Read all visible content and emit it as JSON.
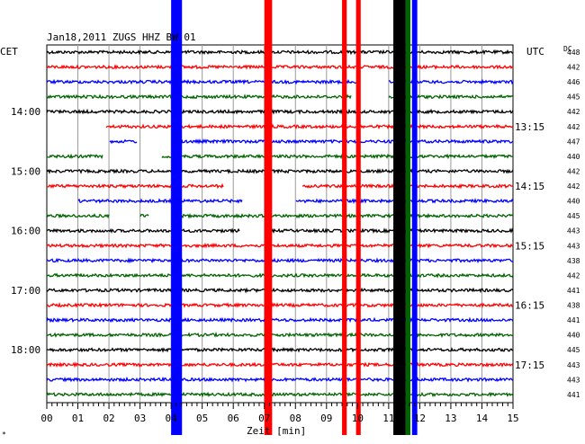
{
  "header": {
    "title": "Jan18,2011   ZUGS HHZ BW 01",
    "left_zone": "CET",
    "right_zone": "UTC",
    "dc_label": "DC",
    "corner_mark": "*"
  },
  "chart_data": {
    "type": "line",
    "title": "Jan18,2011   ZUGS HHZ BW 01",
    "xlabel": "Zeit [min]",
    "x_ticks": [
      "00",
      "01",
      "02",
      "03",
      "04",
      "05",
      "06",
      "07",
      "08",
      "09",
      "10",
      "11",
      "12",
      "13",
      "14",
      "15"
    ],
    "xlim": [
      0,
      15
    ],
    "cet_labels": [
      {
        "label": "14:00",
        "row": 4
      },
      {
        "label": "15:00",
        "row": 8
      },
      {
        "label": "16:00",
        "row": 12
      },
      {
        "label": "17:00",
        "row": 16
      },
      {
        "label": "18:00",
        "row": 20
      }
    ],
    "utc_labels": [
      {
        "label": "13:15",
        "row": 5
      },
      {
        "label": "14:15",
        "row": 9
      },
      {
        "label": "15:15",
        "row": 13
      },
      {
        "label": "16:15",
        "row": 17
      },
      {
        "label": "17:15",
        "row": 21
      }
    ],
    "trace_colors": [
      "#000000",
      "#ff0000",
      "#0000ff",
      "#006400"
    ],
    "dc_offsets": [
      "448",
      "442",
      "446",
      "445",
      "442",
      "442",
      "447",
      "440",
      "442",
      "442",
      "440",
      "445",
      "443",
      "443",
      "438",
      "442",
      "441",
      "438",
      "441",
      "440",
      "445",
      "443",
      "443",
      "441"
    ],
    "gaps": [
      {
        "row": 2,
        "from": 10.1,
        "to": 11.0
      },
      {
        "row": 3,
        "from": 9.8,
        "to": 11.0
      },
      {
        "row": 5,
        "from": 0,
        "to": 1.9
      },
      {
        "row": 6,
        "from": 0,
        "to": 2.0
      },
      {
        "row": 6,
        "from": 2.9,
        "to": 4.0
      },
      {
        "row": 7,
        "from": 1.8,
        "to": 3.7
      },
      {
        "row": 9,
        "from": 5.7,
        "to": 8.2
      },
      {
        "row": 10,
        "from": 0,
        "to": 1.0
      },
      {
        "row": 10,
        "from": 6.3,
        "to": 8.0
      },
      {
        "row": 11,
        "from": 2.0,
        "to": 3.0
      },
      {
        "row": 11,
        "from": 3.3,
        "to": 4.0
      },
      {
        "row": 12,
        "from": 6.2,
        "to": 7.0
      }
    ],
    "events": [
      {
        "color": "#0000ff",
        "from": 4.0,
        "to": 4.35
      },
      {
        "color": "#ff0000",
        "from": 7.0,
        "to": 7.25
      },
      {
        "color": "#ff0000",
        "from": 9.5,
        "to": 9.65
      },
      {
        "color": "#ff0000",
        "from": 9.95,
        "to": 10.1
      },
      {
        "color": "#000000",
        "from": 11.15,
        "to": 11.55
      },
      {
        "color": "#006400",
        "from": 11.55,
        "to": 11.7
      },
      {
        "color": "#0000ff",
        "from": 11.75,
        "to": 11.92
      }
    ]
  }
}
